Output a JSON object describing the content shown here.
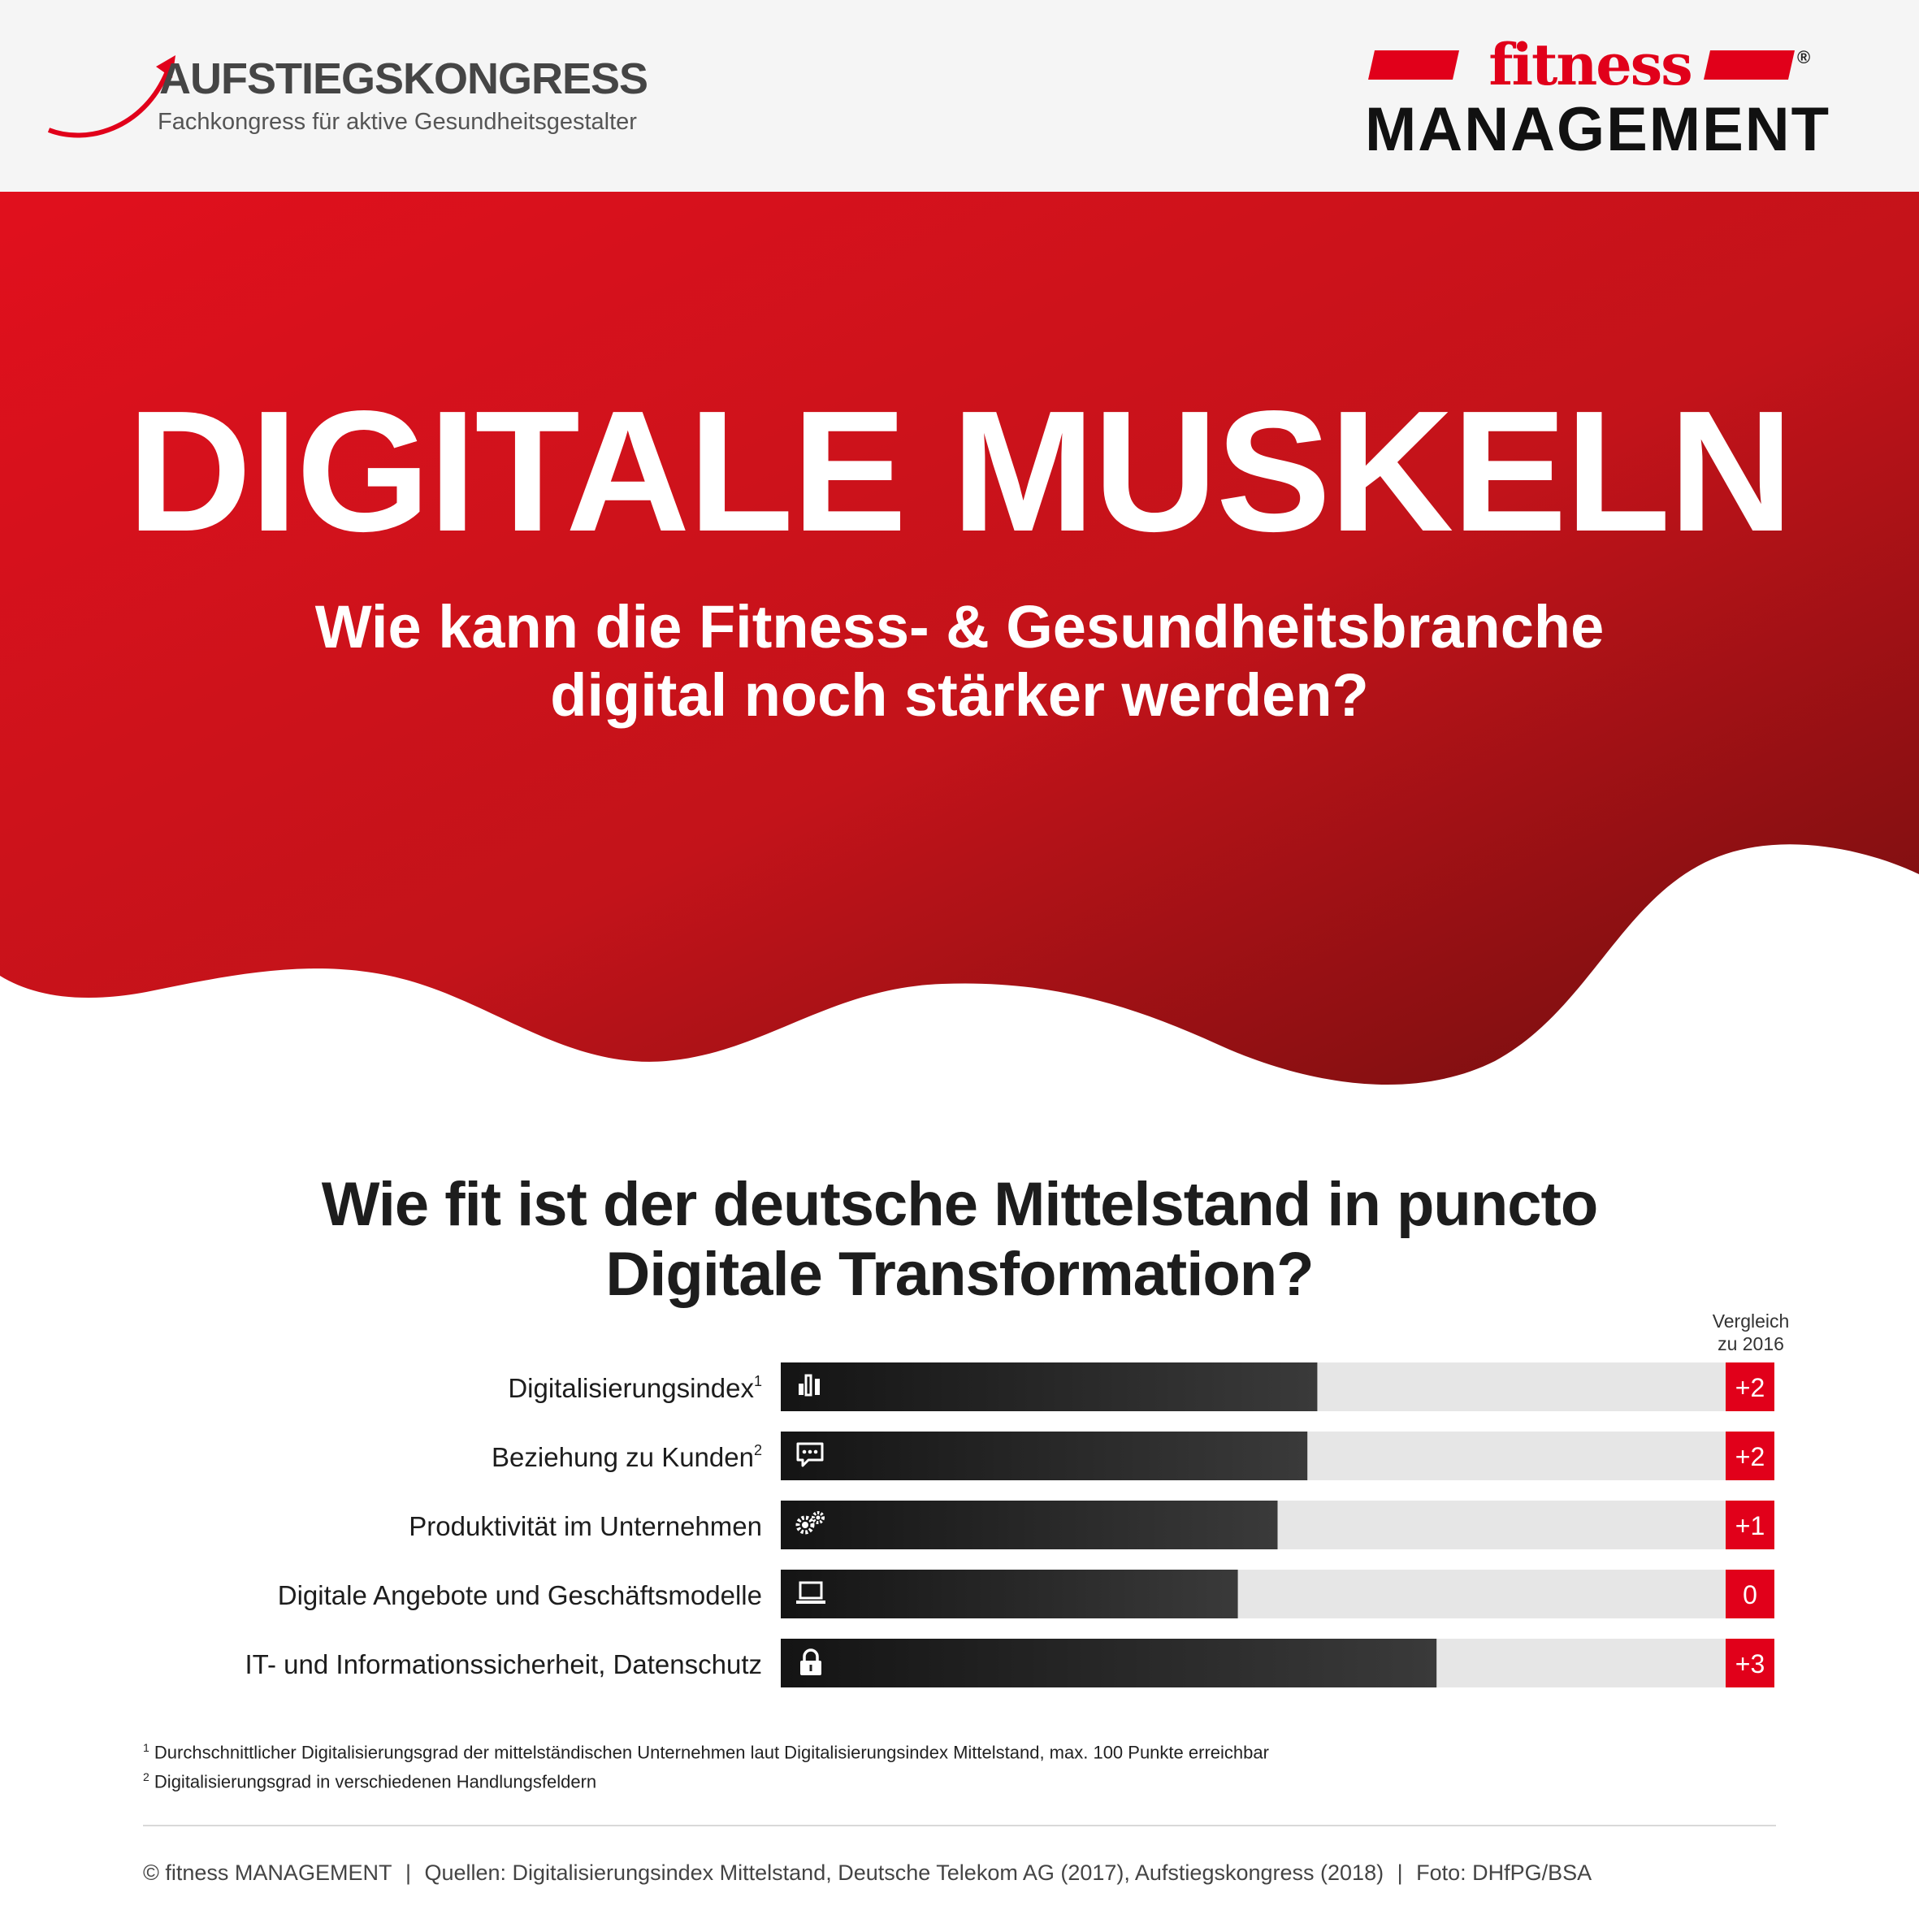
{
  "header": {
    "left_logo": {
      "name": "AUFSTIEGSKONGRESS",
      "tagline": "Fachkongress für aktive Gesundheitsgestalter"
    },
    "right_logo": {
      "line1": "fitness",
      "line2": "MANAGEMENT",
      "registered": "®"
    }
  },
  "hero": {
    "title": "DIGITALE MUSKELN",
    "subtitle_line1": "Wie kann die Fitness- & Gesundheitsbranche",
    "subtitle_line2": "digital noch stärker werden?"
  },
  "colors": {
    "accent": "#e1001a",
    "hero_dark": "#7a1010",
    "bar": "#222222",
    "bar_track": "#e6e6e6"
  },
  "chart_data": {
    "type": "bar",
    "orientation": "horizontal",
    "title_line1": "Wie fit ist der deutsche Mittelstand in puncto",
    "title_line2": "Digitale Transformation?",
    "compare_label_line1": "Vergleich",
    "compare_label_line2": "zu 2016",
    "xlim": [
      0,
      100
    ],
    "categories": [
      {
        "label": "Digitalisierungsindex",
        "sup": "1",
        "value": 54,
        "change": "+2",
        "icon": "bar-chart-icon"
      },
      {
        "label": "Beziehung zu Kunden",
        "sup": "2",
        "value": 53,
        "change": "+2",
        "icon": "chat-bubble-icon"
      },
      {
        "label": "Produktivität im Unternehmen",
        "sup": "",
        "value": 50,
        "change": "+1",
        "icon": "gears-icon"
      },
      {
        "label": "Digitale Angebote und Geschäftsmodelle",
        "sup": "",
        "value": 46,
        "change": "0",
        "icon": "laptop-icon"
      },
      {
        "label": "IT- und Informationssicherheit, Datenschutz",
        "sup": "",
        "value": 66,
        "change": "+3",
        "icon": "lock-icon"
      }
    ]
  },
  "footnotes": {
    "n1": "Durchschnittlicher Digitalisierungsgrad der mittelständischen Unternehmen laut Digitalisierungsindex Mittelstand, max. 100 Punkte erreichbar",
    "n2": "Digitalisierungsgrad in verschiedenen Handlungsfeldern",
    "n1_mark": "1",
    "n2_mark": "2"
  },
  "footer": {
    "copyright": "© fitness MANAGEMENT",
    "sources": "Quellen: Digitalisierungsindex Mittelstand, Deutsche Telekom AG (2017), Aufstiegskongress (2018)",
    "photo": "Foto: DHfPG/BSA",
    "separator": "|"
  }
}
